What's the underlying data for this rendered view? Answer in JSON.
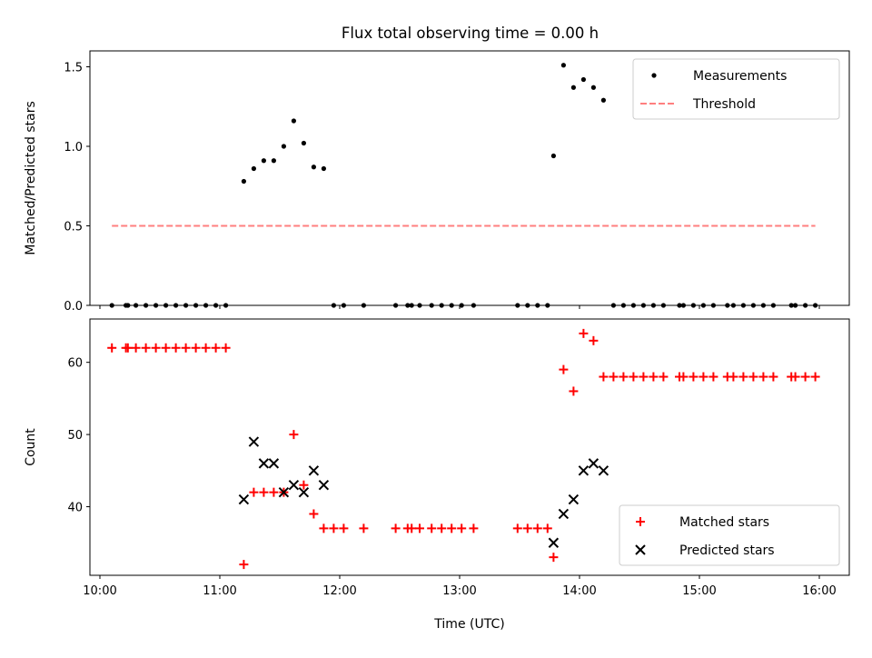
{
  "chart_data": [
    {
      "type": "scatter",
      "title": "Flux total observing time = 0.00 h",
      "xlabel": "",
      "ylabel": "Matched/Predicted stars",
      "xlim": [
        "09:55",
        "16:15"
      ],
      "ylim": [
        0,
        1.6
      ],
      "y_ticks": [
        "0.0",
        "0.5",
        "1.0",
        "1.5"
      ],
      "grid": false,
      "legend_position": "top-right",
      "series": [
        {
          "name": "Measurements",
          "marker": "dot",
          "color": "#000000",
          "points": [
            [
              "10:06",
              0
            ],
            [
              "10:13",
              0
            ],
            [
              "10:14",
              0
            ],
            [
              "10:18",
              0
            ],
            [
              "10:23",
              0
            ],
            [
              "10:28",
              0
            ],
            [
              "10:33",
              0
            ],
            [
              "10:38",
              0
            ],
            [
              "10:43",
              0
            ],
            [
              "10:48",
              0
            ],
            [
              "10:53",
              0
            ],
            [
              "10:58",
              0
            ],
            [
              "11:03",
              0
            ],
            [
              "11:12",
              0.78
            ],
            [
              "11:17",
              0.86
            ],
            [
              "11:22",
              0.91
            ],
            [
              "11:27",
              0.91
            ],
            [
              "11:32",
              1.0
            ],
            [
              "11:37",
              1.16
            ],
            [
              "11:42",
              1.02
            ],
            [
              "11:47",
              0.87
            ],
            [
              "11:52",
              0.86
            ],
            [
              "11:57",
              0
            ],
            [
              "12:02",
              0
            ],
            [
              "12:12",
              0
            ],
            [
              "12:28",
              0
            ],
            [
              "12:34",
              0
            ],
            [
              "12:36",
              0
            ],
            [
              "12:40",
              0
            ],
            [
              "12:46",
              0
            ],
            [
              "12:51",
              0
            ],
            [
              "12:56",
              0
            ],
            [
              "13:01",
              0
            ],
            [
              "13:07",
              0
            ],
            [
              "13:29",
              0
            ],
            [
              "13:34",
              0
            ],
            [
              "13:39",
              0
            ],
            [
              "13:44",
              0
            ],
            [
              "13:47",
              0.94
            ],
            [
              "13:52",
              1.51
            ],
            [
              "13:57",
              1.37
            ],
            [
              "14:02",
              1.42
            ],
            [
              "14:07",
              1.37
            ],
            [
              "14:12",
              1.29
            ],
            [
              "14:17",
              0
            ],
            [
              "14:22",
              0
            ],
            [
              "14:27",
              0
            ],
            [
              "14:32",
              0
            ],
            [
              "14:37",
              0
            ],
            [
              "14:42",
              0
            ],
            [
              "14:50",
              0
            ],
            [
              "14:52",
              0
            ],
            [
              "14:57",
              0
            ],
            [
              "15:02",
              0
            ],
            [
              "15:07",
              0
            ],
            [
              "15:14",
              0
            ],
            [
              "15:17",
              0
            ],
            [
              "15:22",
              0
            ],
            [
              "15:27",
              0
            ],
            [
              "15:32",
              0
            ],
            [
              "15:37",
              0
            ],
            [
              "15:46",
              0
            ],
            [
              "15:48",
              0
            ],
            [
              "15:53",
              0
            ],
            [
              "15:58",
              0
            ]
          ]
        },
        {
          "name": "Threshold",
          "marker": "dashed-line",
          "color": "#ff7f7f",
          "points": [
            [
              "10:06",
              0.5
            ],
            [
              "15:58",
              0.5
            ]
          ]
        }
      ]
    },
    {
      "type": "scatter",
      "title": "",
      "xlabel": "Time (UTC)",
      "ylabel": "Count",
      "xlim": [
        "09:55",
        "16:15"
      ],
      "ylim": [
        30.5,
        66
      ],
      "x_ticks": [
        "10:00",
        "11:00",
        "12:00",
        "13:00",
        "14:00",
        "15:00",
        "16:00"
      ],
      "y_ticks": [
        "40",
        "50",
        "60"
      ],
      "grid": false,
      "legend_position": "bottom-right",
      "series": [
        {
          "name": "Matched stars",
          "marker": "plus",
          "color": "#ff0000",
          "points": [
            [
              "10:06",
              62
            ],
            [
              "10:13",
              62
            ],
            [
              "10:14",
              62
            ],
            [
              "10:18",
              62
            ],
            [
              "10:23",
              62
            ],
            [
              "10:28",
              62
            ],
            [
              "10:33",
              62
            ],
            [
              "10:38",
              62
            ],
            [
              "10:43",
              62
            ],
            [
              "10:48",
              62
            ],
            [
              "10:53",
              62
            ],
            [
              "10:58",
              62
            ],
            [
              "11:03",
              62
            ],
            [
              "11:12",
              32
            ],
            [
              "11:17",
              42
            ],
            [
              "11:22",
              42
            ],
            [
              "11:27",
              42
            ],
            [
              "11:32",
              42
            ],
            [
              "11:37",
              50
            ],
            [
              "11:42",
              43
            ],
            [
              "11:47",
              39
            ],
            [
              "11:52",
              37
            ],
            [
              "11:57",
              37
            ],
            [
              "12:02",
              37
            ],
            [
              "12:12",
              37
            ],
            [
              "12:28",
              37
            ],
            [
              "12:34",
              37
            ],
            [
              "12:36",
              37
            ],
            [
              "12:40",
              37
            ],
            [
              "12:46",
              37
            ],
            [
              "12:51",
              37
            ],
            [
              "12:56",
              37
            ],
            [
              "13:01",
              37
            ],
            [
              "13:07",
              37
            ],
            [
              "13:29",
              37
            ],
            [
              "13:34",
              37
            ],
            [
              "13:39",
              37
            ],
            [
              "13:44",
              37
            ],
            [
              "13:47",
              33
            ],
            [
              "13:52",
              59
            ],
            [
              "13:57",
              56
            ],
            [
              "14:02",
              64
            ],
            [
              "14:07",
              63
            ],
            [
              "14:12",
              58
            ],
            [
              "14:17",
              58
            ],
            [
              "14:22",
              58
            ],
            [
              "14:27",
              58
            ],
            [
              "14:32",
              58
            ],
            [
              "14:37",
              58
            ],
            [
              "14:42",
              58
            ],
            [
              "14:50",
              58
            ],
            [
              "14:52",
              58
            ],
            [
              "14:57",
              58
            ],
            [
              "15:02",
              58
            ],
            [
              "15:07",
              58
            ],
            [
              "15:14",
              58
            ],
            [
              "15:17",
              58
            ],
            [
              "15:22",
              58
            ],
            [
              "15:27",
              58
            ],
            [
              "15:32",
              58
            ],
            [
              "15:37",
              58
            ],
            [
              "15:46",
              58
            ],
            [
              "15:48",
              58
            ],
            [
              "15:53",
              58
            ],
            [
              "15:58",
              58
            ]
          ]
        },
        {
          "name": "Predicted stars",
          "marker": "x",
          "color": "#000000",
          "points": [
            [
              "11:12",
              41
            ],
            [
              "11:17",
              49
            ],
            [
              "11:22",
              46
            ],
            [
              "11:27",
              46
            ],
            [
              "11:32",
              42
            ],
            [
              "11:37",
              43
            ],
            [
              "11:42",
              42
            ],
            [
              "11:47",
              45
            ],
            [
              "11:52",
              43
            ],
            [
              "13:47",
              35
            ],
            [
              "13:52",
              39
            ],
            [
              "13:57",
              41
            ],
            [
              "14:02",
              45
            ],
            [
              "14:07",
              46
            ],
            [
              "14:12",
              45
            ]
          ]
        }
      ]
    }
  ]
}
